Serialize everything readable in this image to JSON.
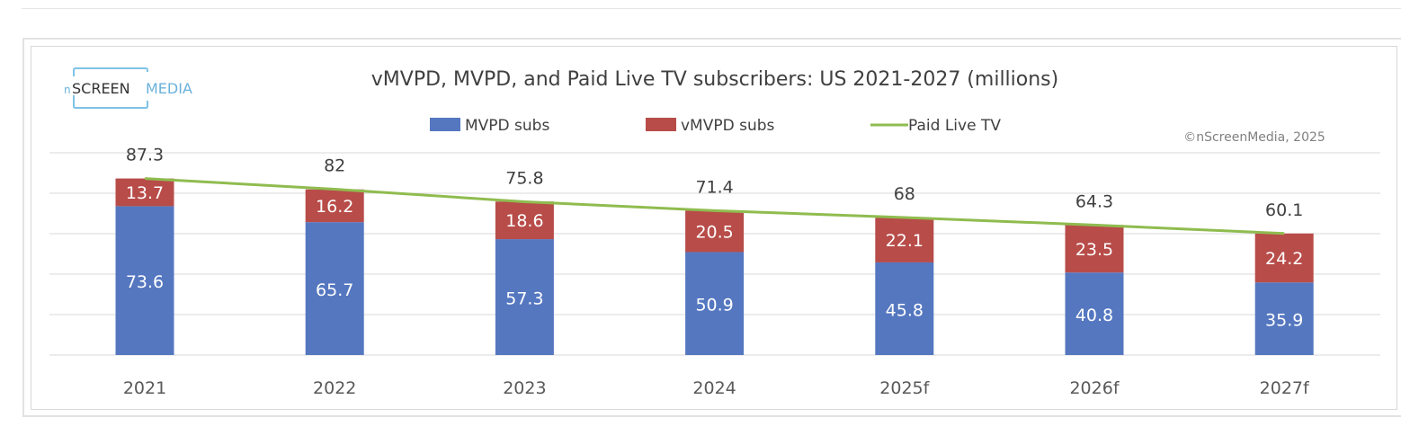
{
  "logo": {
    "text_n": "n",
    "text_screen": "SCREEN",
    "text_media": "MEDIA"
  },
  "copyright": "©nScreenMedia, 2025",
  "chart_data": {
    "type": "bar",
    "stacked": true,
    "title": "vMVPD, MVPD, and Paid Live TV subscribers: US 2021-2027 (millions)",
    "xlabel": "",
    "ylabel": "",
    "ylim": [
      0,
      100
    ],
    "grid": true,
    "legend_position": "top",
    "categories": [
      "2021",
      "2022",
      "2023",
      "2024",
      "2025f",
      "2026f",
      "2027f"
    ],
    "series": [
      {
        "name": "MVPD subs",
        "type": "bar",
        "color": "#5577c0",
        "values": [
          73.6,
          65.7,
          57.3,
          50.9,
          45.8,
          40.8,
          35.9
        ]
      },
      {
        "name": "vMVPD subs",
        "type": "bar",
        "color": "#b84c49",
        "values": [
          13.7,
          16.2,
          18.6,
          20.5,
          22.1,
          23.5,
          24.2
        ]
      },
      {
        "name": "Paid Live TV",
        "type": "line",
        "color": "#8fbc4f",
        "values": [
          87.3,
          82.0,
          75.8,
          71.4,
          68.0,
          64.3,
          60.1
        ]
      }
    ]
  }
}
